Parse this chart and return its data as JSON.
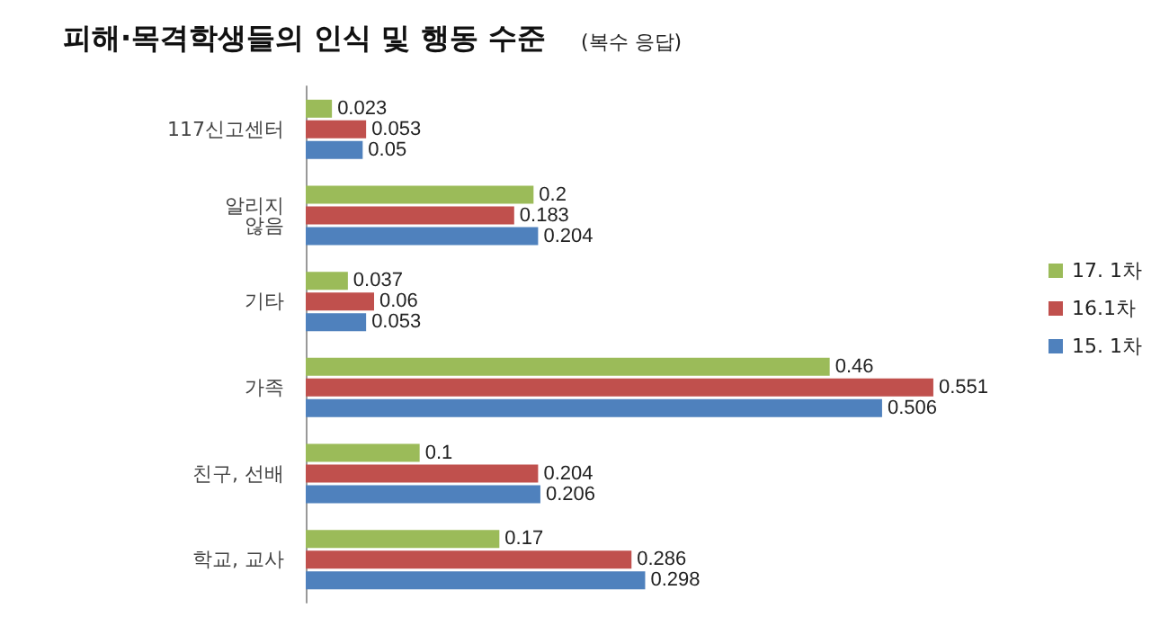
{
  "chart_data": {
    "type": "bar",
    "orientation": "horizontal",
    "title": "피해·목격학생들의 인식 및 행동 수준",
    "subtitle": "(복수 응답)",
    "categories": [
      "117신고센터",
      "알리지\n않음",
      "기타",
      "가족",
      "친구, 선배",
      "학교, 교사"
    ],
    "series": [
      {
        "name": "17. 1차",
        "color": "#9bbb59",
        "values": [
          0.023,
          0.2,
          0.037,
          0.46,
          0.1,
          0.17
        ]
      },
      {
        "name": "16.1차",
        "color": "#c0504d",
        "values": [
          0.053,
          0.183,
          0.06,
          0.551,
          0.204,
          0.286
        ]
      },
      {
        "name": "15. 1차",
        "color": "#4f81bd",
        "values": [
          0.05,
          0.204,
          0.053,
          0.506,
          0.206,
          0.298
        ]
      }
    ],
    "data_labels": true,
    "legend": "right"
  }
}
